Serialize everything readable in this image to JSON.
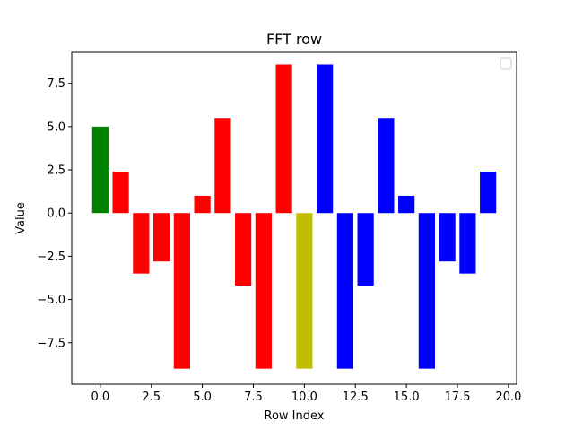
{
  "chart_data": {
    "type": "bar",
    "title": "FFT row",
    "xlabel": "Row Index",
    "ylabel": "Value",
    "x": [
      0,
      1,
      2,
      3,
      4,
      5,
      6,
      7,
      8,
      9,
      10,
      11,
      12,
      13,
      14,
      15,
      16,
      17,
      18,
      19
    ],
    "values": [
      5.0,
      2.4,
      -3.5,
      -2.8,
      -9.0,
      1.0,
      5.5,
      -4.2,
      -9.0,
      8.6,
      -9.0,
      8.6,
      -9.0,
      -4.2,
      5.5,
      1.0,
      -9.0,
      -2.8,
      -3.5,
      2.4
    ],
    "colors": [
      "#008000",
      "#ff0000",
      "#ff0000",
      "#ff0000",
      "#ff0000",
      "#ff0000",
      "#ff0000",
      "#ff0000",
      "#ff0000",
      "#ff0000",
      "#bfbf00",
      "#0000ff",
      "#0000ff",
      "#0000ff",
      "#0000ff",
      "#0000ff",
      "#0000ff",
      "#0000ff",
      "#0000ff",
      "#0000ff"
    ],
    "bar_width": 0.8,
    "xlim": [
      -1.4,
      20.4
    ],
    "ylim": [
      -9.9,
      9.3
    ],
    "xticks": [
      0.0,
      2.5,
      5.0,
      7.5,
      10.0,
      12.5,
      15.0,
      17.5,
      20.0
    ],
    "xtick_labels": [
      "0.0",
      "2.5",
      "5.0",
      "7.5",
      "10.0",
      "12.5",
      "15.0",
      "17.5",
      "20.0"
    ],
    "yticks": [
      -7.5,
      -5.0,
      -2.5,
      0.0,
      2.5,
      5.0,
      7.5
    ],
    "ytick_labels": [
      "−7.5",
      "−5.0",
      "−2.5",
      "0.0",
      "2.5",
      "5.0",
      "7.5"
    ],
    "grid": false,
    "legend": {
      "placement": "top-right",
      "entries": []
    }
  }
}
